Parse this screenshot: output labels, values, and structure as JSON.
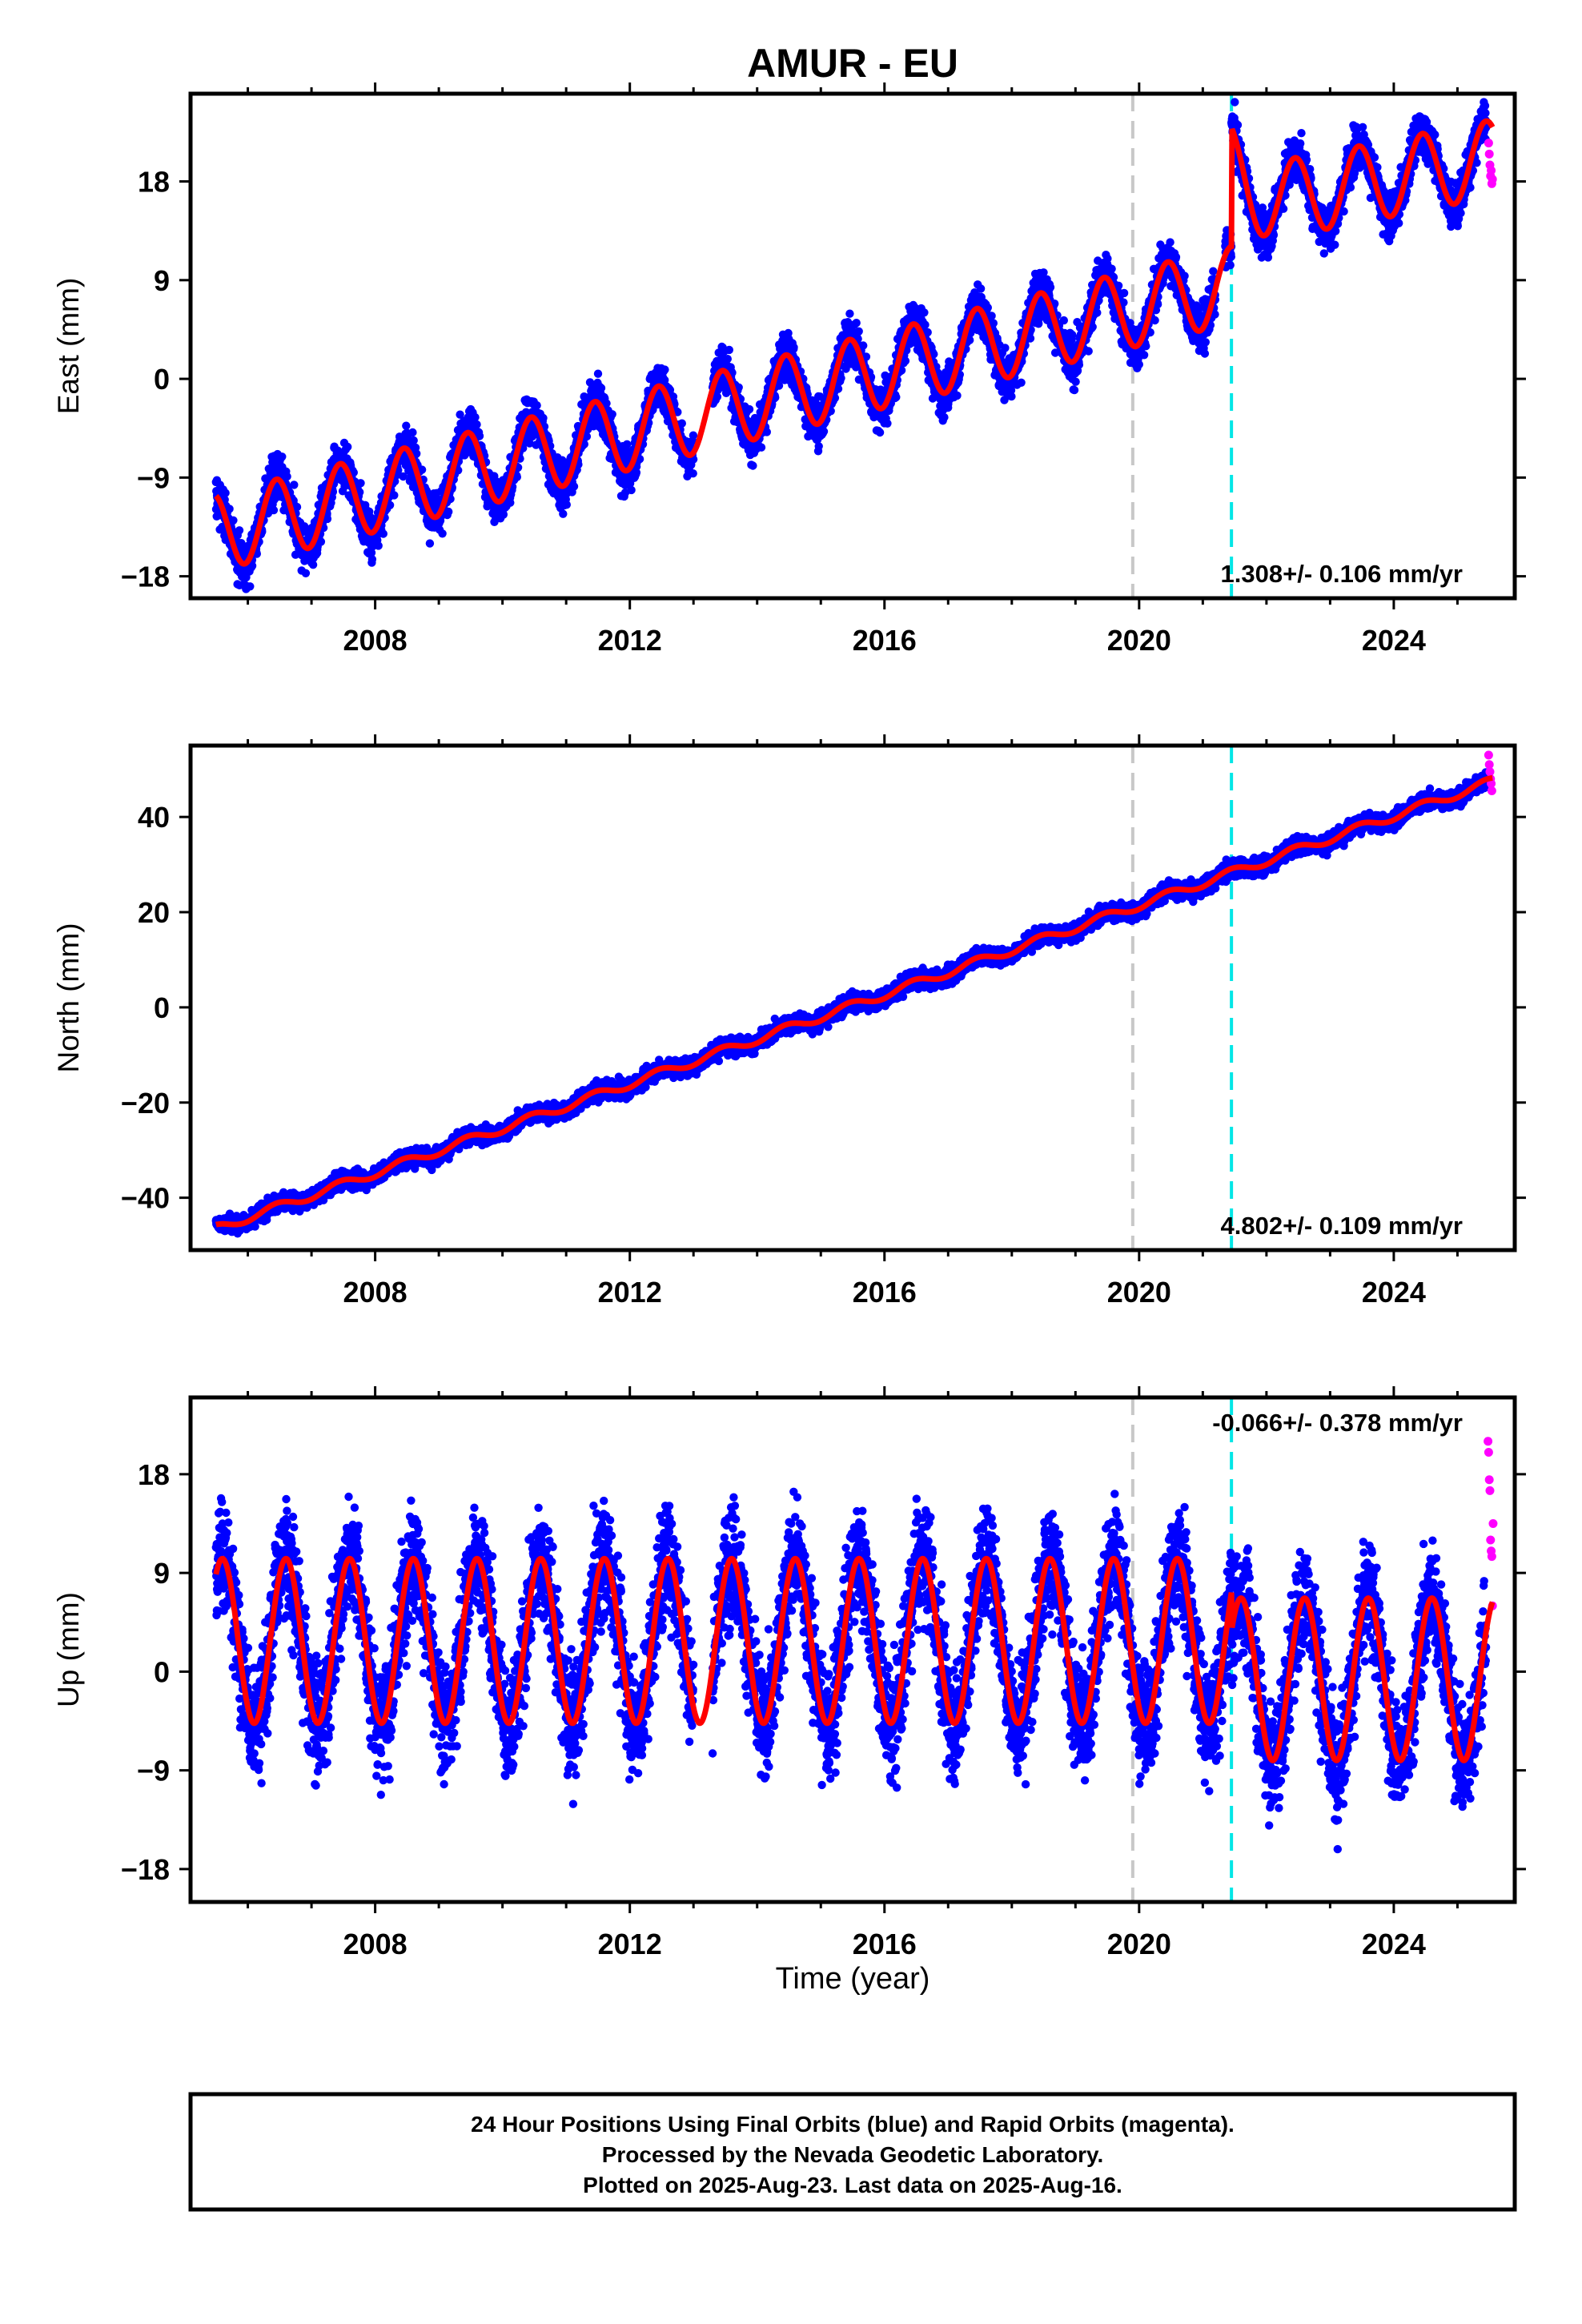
{
  "title": "AMUR - EU",
  "xlabel": "Time (year)",
  "footer": [
    "24 Hour Positions Using Final Orbits (blue) and Rapid Orbits (magenta).",
    "Processed by the Nevada Geodetic Laboratory.",
    "Plotted on 2025-Aug-23. Last data on 2025-Aug-16."
  ],
  "colors": {
    "final": "#0000ff",
    "rapid": "#ff00ff",
    "model": "#ff0000",
    "equipment_change": "#c8c8c8",
    "earthquake": "#00e6e6",
    "axes": "#000000"
  },
  "chart_data": [
    {
      "type": "scatter",
      "component": "East",
      "ylabel": "East (mm)",
      "xlim": [
        2005.1,
        2025.9
      ],
      "ylim": [
        -20,
        26
      ],
      "yticks": [
        -18,
        -9,
        0,
        9,
        18
      ],
      "xticks": [
        2008,
        2012,
        2016,
        2020,
        2024
      ],
      "rate_label": "1.308+/- 0.106 mm/yr",
      "rate_position": "bottom-right",
      "vertical_lines": [
        {
          "x": 2019.9,
          "kind": "equipment_change"
        },
        {
          "x": 2021.45,
          "kind": "earthquake"
        }
      ],
      "series": [
        {
          "name": "Final Orbits",
          "color": "blue",
          "x_start": 2005.5,
          "x_end": 2025.45,
          "trend": {
            "x0": 2005.5,
            "y0": -14.0,
            "x1": 2021.4,
            "y1": 8.5
          },
          "offset_after_2021.45": 7.0,
          "trend_after": {
            "x0": 2021.5,
            "y0": 15.5,
            "x1": 2025.45,
            "y1": 20.0
          },
          "annual_amplitude": 3.5,
          "scatter": 1.4
        },
        {
          "name": "Rapid Orbits",
          "color": "magenta",
          "x": [
            2025.49,
            2025.5,
            2025.51,
            2025.52,
            2025.53,
            2025.54,
            2025.55
          ],
          "y": [
            21.5,
            20.5,
            19.5,
            18.5,
            19.0,
            17.8,
            18.2
          ]
        },
        {
          "name": "Model",
          "color": "red",
          "curve": "trend + seasonal"
        }
      ]
    },
    {
      "type": "scatter",
      "component": "North",
      "ylabel": "North (mm)",
      "xlim": [
        2005.1,
        2025.9
      ],
      "ylim": [
        -51,
        55
      ],
      "yticks": [
        -40,
        -20,
        0,
        20,
        40
      ],
      "xticks": [
        2008,
        2012,
        2016,
        2020,
        2024
      ],
      "rate_label": "4.802+/- 0.109 mm/yr",
      "rate_position": "bottom-right",
      "vertical_lines": [
        {
          "x": 2019.9,
          "kind": "equipment_change"
        },
        {
          "x": 2021.45,
          "kind": "earthquake"
        }
      ],
      "series": [
        {
          "name": "Final Orbits",
          "color": "blue",
          "x_start": 2005.5,
          "x_end": 2025.45,
          "trend": {
            "x0": 2005.5,
            "y0": -46.5,
            "x1": 2025.45,
            "y1": 47.0
          },
          "annual_amplitude": 0.9,
          "scatter": 1.2
        },
        {
          "name": "Rapid Orbits",
          "color": "magenta",
          "x": [
            2025.49,
            2025.5,
            2025.51,
            2025.52,
            2025.53,
            2025.54
          ],
          "y": [
            53.0,
            51.0,
            49.5,
            48.0,
            47.0,
            45.5
          ]
        },
        {
          "name": "Model",
          "color": "red",
          "curve": "trend + seasonal"
        }
      ]
    },
    {
      "type": "scatter",
      "component": "Up",
      "ylabel": "Up (mm)",
      "xlim": [
        2005.1,
        2025.9
      ],
      "ylim": [
        -21,
        25
      ],
      "yticks": [
        -18,
        -9,
        0,
        9,
        18
      ],
      "xticks": [
        2008,
        2012,
        2016,
        2020,
        2024
      ],
      "rate_label": "-0.066+/- 0.378 mm/yr",
      "rate_position": "top-right",
      "vertical_lines": [
        {
          "x": 2019.9,
          "kind": "equipment_change"
        },
        {
          "x": 2021.45,
          "kind": "earthquake"
        }
      ],
      "series": [
        {
          "name": "Final Orbits",
          "color": "blue",
          "x_start": 2005.5,
          "x_end": 2025.45,
          "mean": 3.0,
          "annual_amplitude": 7.5,
          "scatter": 3.6,
          "peak_months": "July/August"
        },
        {
          "name": "Rapid Orbits",
          "color": "magenta",
          "x": [
            2025.48,
            2025.49,
            2025.5,
            2025.51,
            2025.52,
            2025.53,
            2025.54,
            2025.55,
            2025.56
          ],
          "y": [
            21.0,
            20.0,
            17.5,
            16.5,
            12.0,
            11.0,
            10.5,
            6.0,
            13.5
          ]
        },
        {
          "name": "Model",
          "color": "red",
          "curve": "seasonal",
          "minimum_before_2021": -5.0,
          "minimum_after_2021": -8.0,
          "maximum": 10.5
        }
      ]
    }
  ]
}
